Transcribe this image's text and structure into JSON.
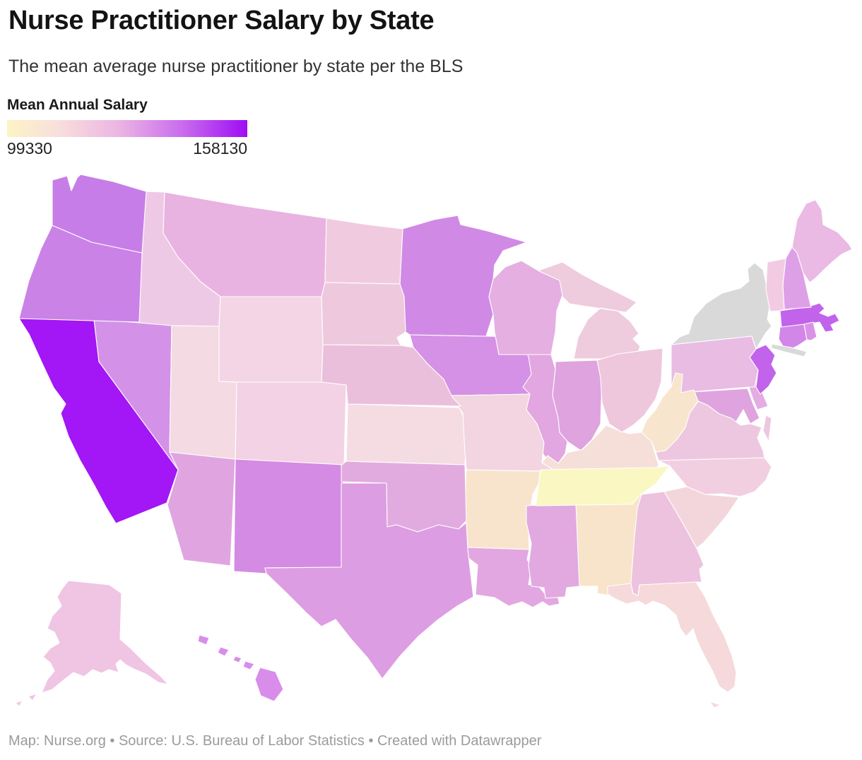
{
  "header": {
    "title": "Nurse Practitioner Salary by State",
    "subtitle": "The mean average nurse practitioner by state per the BLS"
  },
  "legend": {
    "title": "Mean Annual Salary",
    "min_label": "99330",
    "max_label": "158130",
    "gradient_stops": [
      "#fdf4c5 0%",
      "#f8dedd 22%",
      "#ecb6e2 46%",
      "#c96cee 73%",
      "#9e0df3 100%"
    ]
  },
  "footer": {
    "map_label": "Map: ",
    "map_credit": "Nurse.org",
    "separator": " • ",
    "source_label": "Source: ",
    "source_name": "U.S. Bureau of Labor Statistics",
    "created_text": "Created with Datawrapper"
  },
  "chart_data": {
    "type": "choropleth_map",
    "geo": "us-states",
    "title": "Nurse Practitioner Salary by State",
    "legend_title": "Mean Annual Salary",
    "scale": {
      "min": 99330,
      "max": 158130
    },
    "no_data_color": "#d9d9d9",
    "no_data_states": [
      "NY"
    ],
    "series": [
      {
        "state": "Alabama",
        "abbr": "AL",
        "fill": "#f8e4ca",
        "value_est": 104000
      },
      {
        "state": "Alaska",
        "abbr": "AK",
        "fill": "#efc5e3",
        "value_est": 119000
      },
      {
        "state": "Arizona",
        "abbr": "AZ",
        "fill": "#e0a5e0",
        "value_est": 127000
      },
      {
        "state": "Arkansas",
        "abbr": "AR",
        "fill": "#f8e4cd",
        "value_est": 104500
      },
      {
        "state": "California",
        "abbr": "CA",
        "fill": "#a316f5",
        "value_est": 158130
      },
      {
        "state": "Colorado",
        "abbr": "CO",
        "fill": "#f2d2e4",
        "value_est": 113000
      },
      {
        "state": "Connecticut",
        "abbr": "CT",
        "fill": "#d287e8",
        "value_est": 136000
      },
      {
        "state": "Delaware",
        "abbr": "DE",
        "fill": "#e3ace2",
        "value_est": 125000
      },
      {
        "state": "District of Columbia",
        "abbr": "DC",
        "fill": "#c96fe6",
        "value_est": 131000
      },
      {
        "state": "Florida",
        "abbr": "FL",
        "fill": "#f6d9da",
        "value_est": 115000
      },
      {
        "state": "Georgia",
        "abbr": "GA",
        "fill": "#ecc2df",
        "value_est": 120000
      },
      {
        "state": "Hawaii",
        "abbr": "HI",
        "fill": "#d88deb",
        "value_est": 135000
      },
      {
        "state": "Idaho",
        "abbr": "ID",
        "fill": "#eec9e5",
        "value_est": 119000
      },
      {
        "state": "Illinois",
        "abbr": "IL",
        "fill": "#e2a6e1",
        "value_est": 128000
      },
      {
        "state": "Indiana",
        "abbr": "IN",
        "fill": "#dfa3df",
        "value_est": 127000
      },
      {
        "state": "Iowa",
        "abbr": "IA",
        "fill": "#d591e5",
        "value_est": 136500
      },
      {
        "state": "Kansas",
        "abbr": "KS",
        "fill": "#f5dce2",
        "value_est": 111000
      },
      {
        "state": "Kentucky",
        "abbr": "KY",
        "fill": "#f6dfd8",
        "value_est": 108000
      },
      {
        "state": "Louisiana",
        "abbr": "LA",
        "fill": "#e2a7e1",
        "value_est": 128000
      },
      {
        "state": "Maine",
        "abbr": "ME",
        "fill": "#eab9e4",
        "value_est": 122000
      },
      {
        "state": "Maryland",
        "abbr": "MD",
        "fill": "#dfa4e0",
        "value_est": 127000
      },
      {
        "state": "Massachusetts",
        "abbr": "MA",
        "fill": "#c263ec",
        "value_est": 146000
      },
      {
        "state": "Michigan",
        "abbr": "MI",
        "fill": "#eecbdd",
        "value_est": 117000
      },
      {
        "state": "Minnesota",
        "abbr": "MN",
        "fill": "#d08ae6",
        "value_est": 137000
      },
      {
        "state": "Mississippi",
        "abbr": "MS",
        "fill": "#e2a9e1",
        "value_est": 127500
      },
      {
        "state": "Missouri",
        "abbr": "MO",
        "fill": "#f2d5e1",
        "value_est": 112000
      },
      {
        "state": "Montana",
        "abbr": "MT",
        "fill": "#e8b3e0",
        "value_est": 121000
      },
      {
        "state": "Nebraska",
        "abbr": "NE",
        "fill": "#eabfdc",
        "value_est": 118000
      },
      {
        "state": "Nevada",
        "abbr": "NV",
        "fill": "#d392e8",
        "value_est": 135500
      },
      {
        "state": "New Hampshire",
        "abbr": "NH",
        "fill": "#dda0e7",
        "value_est": 132000
      },
      {
        "state": "New Jersey",
        "abbr": "NJ",
        "fill": "#c263eb",
        "value_est": 146000
      },
      {
        "state": "New Mexico",
        "abbr": "NM",
        "fill": "#d48be3",
        "value_est": 134000
      },
      {
        "state": "New York",
        "abbr": "NY",
        "fill": "#d9d9d9",
        "value_est": null
      },
      {
        "state": "North Carolina",
        "abbr": "NC",
        "fill": "#f1cfe0",
        "value_est": 116000
      },
      {
        "state": "North Dakota",
        "abbr": "ND",
        "fill": "#f0cbdf",
        "value_est": 114000
      },
      {
        "state": "Ohio",
        "abbr": "OH",
        "fill": "#eec7dd",
        "value_est": 117000
      },
      {
        "state": "Oklahoma",
        "abbr": "OK",
        "fill": "#e2abdf",
        "value_est": 127000
      },
      {
        "state": "Oregon",
        "abbr": "OR",
        "fill": "#ca82e7",
        "value_est": 138000
      },
      {
        "state": "Pennsylvania",
        "abbr": "PA",
        "fill": "#e9bce3",
        "value_est": 122000
      },
      {
        "state": "Rhode Island",
        "abbr": "RI",
        "fill": "#da92e7",
        "value_est": 134000
      },
      {
        "state": "South Carolina",
        "abbr": "SC",
        "fill": "#f3d6dc",
        "value_est": 115000
      },
      {
        "state": "South Dakota",
        "abbr": "SD",
        "fill": "#eec8dd",
        "value_est": 116000
      },
      {
        "state": "Tennessee",
        "abbr": "TN",
        "fill": "#faf7c3",
        "value_est": 99330
      },
      {
        "state": "Texas",
        "abbr": "TX",
        "fill": "#dd9de2",
        "value_est": 130000
      },
      {
        "state": "Utah",
        "abbr": "UT",
        "fill": "#f4dae2",
        "value_est": 111500
      },
      {
        "state": "Vermont",
        "abbr": "VT",
        "fill": "#f2cbe3",
        "value_est": 115000
      },
      {
        "state": "Virginia",
        "abbr": "VA",
        "fill": "#edc7df",
        "value_est": 117000
      },
      {
        "state": "Washington",
        "abbr": "WA",
        "fill": "#c77de7",
        "value_est": 139000
      },
      {
        "state": "West Virginia",
        "abbr": "WV",
        "fill": "#f8e5cd",
        "value_est": 105000
      },
      {
        "state": "Wisconsin",
        "abbr": "WI",
        "fill": "#e5afe2",
        "value_est": 125000
      },
      {
        "state": "Wyoming",
        "abbr": "WY",
        "fill": "#f3d5e6",
        "value_est": 113000
      }
    ]
  }
}
